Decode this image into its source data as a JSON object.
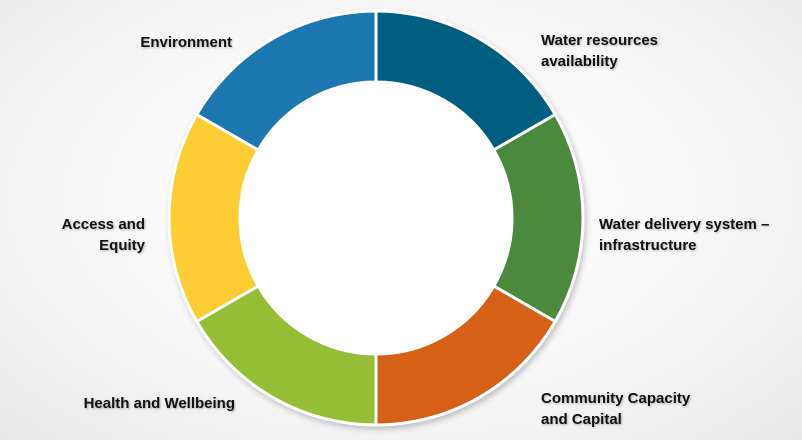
{
  "diagram": {
    "segments": [
      {
        "id": "water-resources",
        "lines": [
          "Water resources",
          "availability"
        ],
        "color": "#045F80"
      },
      {
        "id": "water-delivery",
        "lines": [
          "Water delivery system –",
          "infrastructure"
        ],
        "color": "#4B8A3C"
      },
      {
        "id": "community-capacity",
        "lines": [
          "Community Capacity",
          "and Capital"
        ],
        "color": "#D66116"
      },
      {
        "id": "health-wellbeing",
        "lines": [
          "Health and Wellbeing"
        ],
        "color": "#94BE35"
      },
      {
        "id": "access-equity",
        "lines": [
          "Access and",
          "Equity"
        ],
        "color": "#FDCC30"
      },
      {
        "id": "environment",
        "lines": [
          "Environment"
        ],
        "color": "#1A77B0"
      }
    ]
  }
}
